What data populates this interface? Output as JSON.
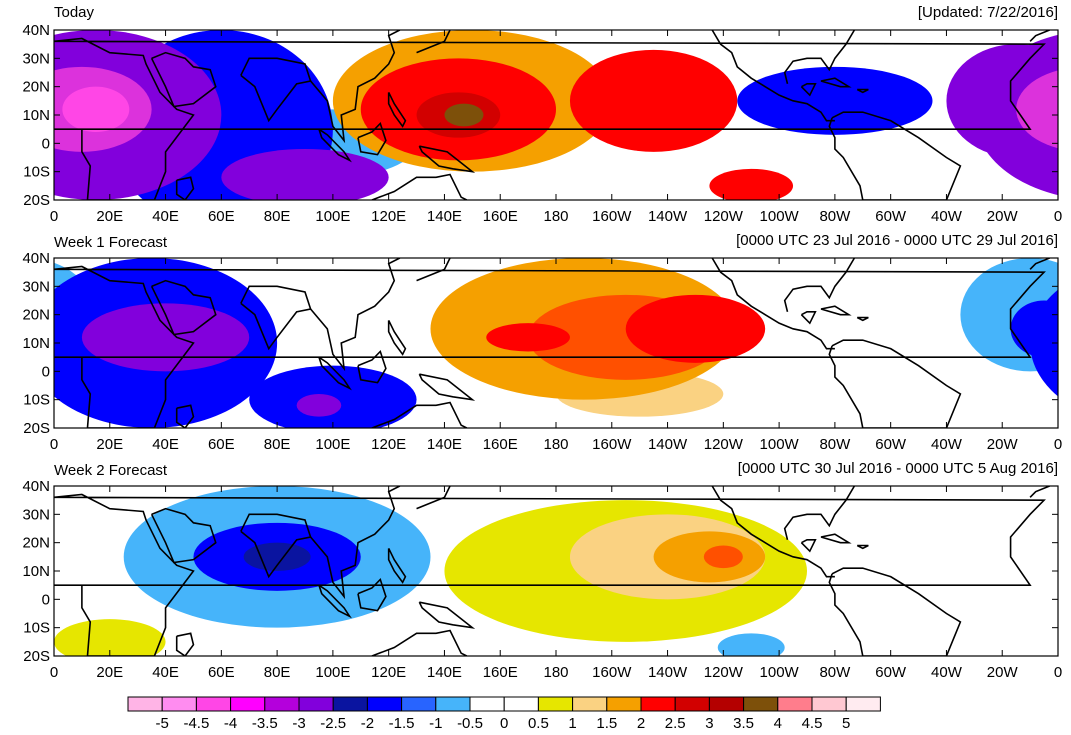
{
  "figure": {
    "updated_label": "[Updated: 7/22/2016]",
    "lat_labels": [
      "40N",
      "30N",
      "20N",
      "10N",
      "0",
      "10S",
      "20S"
    ],
    "lon_labels": [
      "0",
      "20E",
      "40E",
      "60E",
      "80E",
      "100E",
      "120E",
      "140E",
      "160E",
      "180",
      "160W",
      "140W",
      "120W",
      "100W",
      "80W",
      "60W",
      "40W",
      "20W",
      "0"
    ]
  },
  "panels": [
    {
      "id": "today",
      "title": "Today",
      "range": "[Updated: 7/22/2016]",
      "blobs": [
        {
          "lon": 15,
          "lat": 10,
          "rx": 45,
          "ry": 30,
          "level": -3
        },
        {
          "lon": 10,
          "lat": 12,
          "rx": 25,
          "ry": 15,
          "level": -4
        },
        {
          "lon": 15,
          "lat": 12,
          "rx": 12,
          "ry": 8,
          "level": -4.5
        },
        {
          "lon": 60,
          "lat": 5,
          "rx": 40,
          "ry": 35,
          "level": -2
        },
        {
          "lon": 90,
          "lat": -12,
          "rx": 30,
          "ry": 10,
          "level": -3
        },
        {
          "lon": 100,
          "lat": 0,
          "rx": 30,
          "ry": 12,
          "level": -1
        },
        {
          "lon": 150,
          "lat": 15,
          "rx": 50,
          "ry": 25,
          "level": 1.5
        },
        {
          "lon": 145,
          "lat": 12,
          "rx": 35,
          "ry": 18,
          "level": 2.5
        },
        {
          "lon": 145,
          "lat": 10,
          "rx": 15,
          "ry": 8,
          "level": 3
        },
        {
          "lon": 147,
          "lat": 10,
          "rx": 7,
          "ry": 4,
          "level": 4
        },
        {
          "lon": 215,
          "lat": 15,
          "rx": 30,
          "ry": 18,
          "level": 2.5
        },
        {
          "lon": 250,
          "lat": -15,
          "rx": 15,
          "ry": 6,
          "level": 2.5
        },
        {
          "lon": 280,
          "lat": 15,
          "rx": 35,
          "ry": 12,
          "level": -2
        },
        {
          "lon": 345,
          "lat": 15,
          "rx": 25,
          "ry": 20,
          "level": -3
        }
      ]
    },
    {
      "id": "week1",
      "title": "Week 1 Forecast",
      "range": "[0000 UTC 23 Jul 2016 - 0000 UTC 29 Jul 2016]",
      "blobs": [
        {
          "lon": 35,
          "lat": 10,
          "rx": 45,
          "ry": 30,
          "level": -2
        },
        {
          "lon": 40,
          "lat": 12,
          "rx": 30,
          "ry": 12,
          "level": -3
        },
        {
          "lon": 100,
          "lat": -10,
          "rx": 30,
          "ry": 12,
          "level": -2
        },
        {
          "lon": 95,
          "lat": -12,
          "rx": 8,
          "ry": 4,
          "level": -3
        },
        {
          "lon": 190,
          "lat": 15,
          "rx": 55,
          "ry": 25,
          "level": 1.5
        },
        {
          "lon": 205,
          "lat": 12,
          "rx": 35,
          "ry": 15,
          "level": 2
        },
        {
          "lon": 170,
          "lat": 12,
          "rx": 15,
          "ry": 5,
          "level": 2.5
        },
        {
          "lon": 230,
          "lat": 15,
          "rx": 25,
          "ry": 12,
          "level": 2.5
        },
        {
          "lon": 210,
          "lat": -8,
          "rx": 30,
          "ry": 8,
          "level": 1
        },
        {
          "lon": 350,
          "lat": 20,
          "rx": 25,
          "ry": 20,
          "level": -1
        },
        {
          "lon": 355,
          "lat": 15,
          "rx": 12,
          "ry": 10,
          "level": -2
        }
      ]
    },
    {
      "id": "week2",
      "title": "Week 2 Forecast",
      "range": "[0000 UTC 30 Jul 2016 - 0000 UTC 5 Aug 2016]",
      "blobs": [
        {
          "lon": 80,
          "lat": 15,
          "rx": 55,
          "ry": 25,
          "level": -1
        },
        {
          "lon": 80,
          "lat": 15,
          "rx": 30,
          "ry": 12,
          "level": -2
        },
        {
          "lon": 80,
          "lat": 15,
          "rx": 12,
          "ry": 5,
          "level": -2.5
        },
        {
          "lon": 20,
          "lat": -15,
          "rx": 20,
          "ry": 8,
          "level": 0.5
        },
        {
          "lon": 205,
          "lat": 10,
          "rx": 65,
          "ry": 25,
          "level": 0.5
        },
        {
          "lon": 220,
          "lat": 15,
          "rx": 35,
          "ry": 15,
          "level": 1
        },
        {
          "lon": 235,
          "lat": 15,
          "rx": 20,
          "ry": 9,
          "level": 1.5
        },
        {
          "lon": 240,
          "lat": 15,
          "rx": 7,
          "ry": 4,
          "level": 2
        },
        {
          "lon": 250,
          "lat": -17,
          "rx": 12,
          "ry": 5,
          "level": -1
        }
      ]
    }
  ],
  "colorbar": {
    "labels": [
      "-5",
      "-4.5",
      "-4",
      "-3.5",
      "-3",
      "-2.5",
      "-2",
      "-1.5",
      "-1",
      "-0.5",
      "0",
      "0.5",
      "1",
      "1.5",
      "2",
      "2.5",
      "3",
      "3.5",
      "4",
      "4.5",
      "5"
    ],
    "colors": [
      "#ffb4e6",
      "#ff8cf0",
      "#ff46e6",
      "#ff00ff",
      "#b400dc",
      "#8200dc",
      "#0a14a0",
      "#0000ff",
      "#2864ff",
      "#46b4fa",
      "#ffffff",
      "#ffffff",
      "#e6e600",
      "#fad282",
      "#f5a000",
      "#ff0000",
      "#d20000",
      "#b40000",
      "#7d500a",
      "#ff7d8c",
      "#ffc8d2",
      "#ffebf0"
    ]
  },
  "levels": [
    {
      "level": -4.5,
      "color": "#ff46e6"
    },
    {
      "level": -4,
      "color": "#dc32dc"
    },
    {
      "level": -3.5,
      "color": "#b400dc"
    },
    {
      "level": -3,
      "color": "#8200dc"
    },
    {
      "level": -2.5,
      "color": "#0a14a0"
    },
    {
      "level": -2,
      "color": "#0000ff"
    },
    {
      "level": -1.5,
      "color": "#2864ff"
    },
    {
      "level": -1,
      "color": "#46b4fa"
    },
    {
      "level": 0.5,
      "color": "#e6e600"
    },
    {
      "level": 1,
      "color": "#fad282"
    },
    {
      "level": 1.5,
      "color": "#f5a000"
    },
    {
      "level": 2,
      "color": "#ff5000"
    },
    {
      "level": 2.5,
      "color": "#ff0000"
    },
    {
      "level": 3,
      "color": "#d20000"
    },
    {
      "level": 3.5,
      "color": "#b40000"
    },
    {
      "level": 4,
      "color": "#7d500a"
    }
  ]
}
